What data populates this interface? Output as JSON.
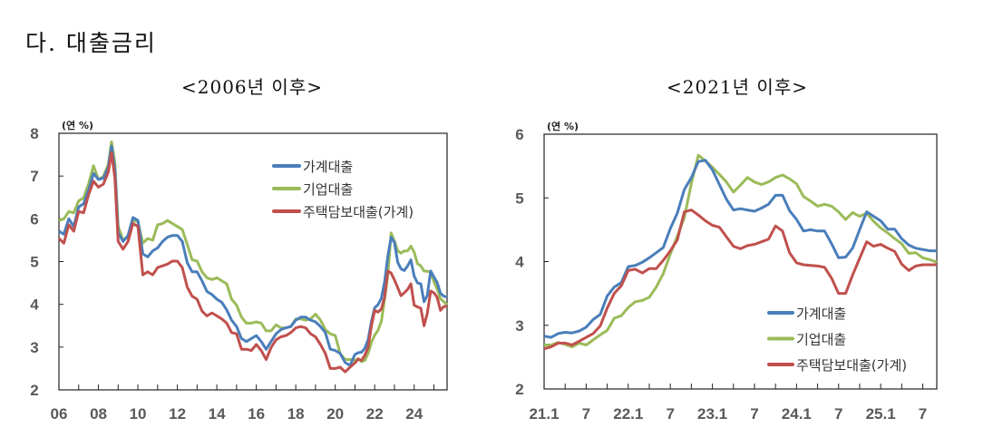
{
  "page_title": "다. 대출금리",
  "chart_data": [
    {
      "type": "line",
      "subtitle": "<2006년 이후>",
      "unit": "(연 %)",
      "ylim": [
        2,
        8
      ],
      "yticks": [
        2,
        3,
        4,
        5,
        6,
        7,
        8
      ],
      "xlim": [
        "2006-01",
        "2025-09"
      ],
      "xtick_labels": [
        "06",
        "08",
        "10",
        "12",
        "14",
        "16",
        "18",
        "20",
        "22",
        "24"
      ],
      "legend_position": "top-right",
      "x": [
        "2006-01",
        "2006-04",
        "2006-07",
        "2006-10",
        "2007-01",
        "2007-04",
        "2007-07",
        "2007-10",
        "2008-01",
        "2008-04",
        "2008-07",
        "2008-09",
        "2008-11",
        "2009-01",
        "2009-04",
        "2009-07",
        "2009-10",
        "2010-01",
        "2010-04",
        "2010-07",
        "2010-10",
        "2011-01",
        "2011-04",
        "2011-07",
        "2011-10",
        "2012-01",
        "2012-04",
        "2012-07",
        "2012-10",
        "2013-01",
        "2013-04",
        "2013-07",
        "2013-10",
        "2014-01",
        "2014-04",
        "2014-07",
        "2014-10",
        "2015-01",
        "2015-04",
        "2015-07",
        "2015-10",
        "2016-01",
        "2016-04",
        "2016-07",
        "2016-10",
        "2017-01",
        "2017-04",
        "2017-07",
        "2017-10",
        "2018-01",
        "2018-04",
        "2018-07",
        "2018-10",
        "2019-01",
        "2019-04",
        "2019-07",
        "2019-10",
        "2020-01",
        "2020-04",
        "2020-07",
        "2020-10",
        "2021-01",
        "2021-03",
        "2021-05",
        "2021-07",
        "2021-09",
        "2021-11",
        "2022-01",
        "2022-03",
        "2022-05",
        "2022-07",
        "2022-09",
        "2022-11",
        "2023-01",
        "2023-03",
        "2023-05",
        "2023-07",
        "2023-09",
        "2023-11",
        "2024-01",
        "2024-03",
        "2024-05",
        "2024-07",
        "2024-09",
        "2024-11",
        "2025-01",
        "2025-03",
        "2025-05",
        "2025-07",
        "2025-09"
      ],
      "series": [
        {
          "name": "가계대출",
          "color": "#4a7ebb",
          "values": [
            5.71,
            5.64,
            6.0,
            5.82,
            6.28,
            6.35,
            6.67,
            7.06,
            6.92,
            6.95,
            7.2,
            7.7,
            7.16,
            5.68,
            5.47,
            5.61,
            6.03,
            5.96,
            5.18,
            5.11,
            5.25,
            5.32,
            5.47,
            5.57,
            5.61,
            5.61,
            5.47,
            4.97,
            4.76,
            4.76,
            4.55,
            4.3,
            4.23,
            4.12,
            4.05,
            3.87,
            3.63,
            3.48,
            3.2,
            3.13,
            3.2,
            3.27,
            3.13,
            2.95,
            3.13,
            3.31,
            3.41,
            3.45,
            3.48,
            3.63,
            3.7,
            3.7,
            3.63,
            3.59,
            3.48,
            3.34,
            2.95,
            2.92,
            2.85,
            2.64,
            2.57,
            2.83,
            2.87,
            2.88,
            2.97,
            3.17,
            3.6,
            3.92,
            3.99,
            4.14,
            4.52,
            5.13,
            5.57,
            5.44,
            4.98,
            4.83,
            4.79,
            4.9,
            5.04,
            4.66,
            4.5,
            4.48,
            4.06,
            4.21,
            4.78,
            4.64,
            4.51,
            4.26,
            4.19,
            4.17
          ]
        },
        {
          "name": "기업대출",
          "color": "#9bbb59",
          "values": [
            5.96,
            6.0,
            6.17,
            6.14,
            6.42,
            6.49,
            6.81,
            7.24,
            6.92,
            6.99,
            7.27,
            7.8,
            7.31,
            5.82,
            5.5,
            5.57,
            5.96,
            5.93,
            5.43,
            5.54,
            5.5,
            5.86,
            5.89,
            5.96,
            5.89,
            5.82,
            5.75,
            5.4,
            5.04,
            5.01,
            4.76,
            4.62,
            4.58,
            4.62,
            4.55,
            4.48,
            4.12,
            3.98,
            3.7,
            3.56,
            3.56,
            3.59,
            3.56,
            3.38,
            3.38,
            3.52,
            3.45,
            3.45,
            3.48,
            3.66,
            3.66,
            3.63,
            3.66,
            3.77,
            3.63,
            3.41,
            3.31,
            3.27,
            2.85,
            2.71,
            2.71,
            2.69,
            2.73,
            2.66,
            2.69,
            2.85,
            3.11,
            3.28,
            3.39,
            3.6,
            4.12,
            4.69,
            5.67,
            5.48,
            5.25,
            5.2,
            5.25,
            5.25,
            5.36,
            5.22,
            4.95,
            4.9,
            4.78,
            4.77,
            4.76,
            4.53,
            4.36,
            4.13,
            4.06,
            3.99
          ]
        },
        {
          "name": "주택담보대출(가계)",
          "color": "#c0504d",
          "values": [
            5.54,
            5.43,
            5.86,
            5.71,
            6.17,
            6.14,
            6.56,
            6.88,
            6.74,
            6.81,
            7.09,
            7.55,
            6.95,
            5.47,
            5.29,
            5.47,
            5.89,
            5.82,
            4.69,
            4.76,
            4.69,
            4.86,
            4.9,
            4.94,
            5.01,
            5.01,
            4.86,
            4.4,
            4.19,
            4.12,
            3.84,
            3.73,
            3.8,
            3.73,
            3.66,
            3.56,
            3.34,
            3.31,
            2.95,
            2.95,
            2.92,
            3.06,
            2.92,
            2.71,
            2.99,
            3.17,
            3.24,
            3.27,
            3.34,
            3.45,
            3.48,
            3.45,
            3.31,
            3.24,
            3.06,
            2.85,
            2.5,
            2.5,
            2.53,
            2.42,
            2.53,
            2.63,
            2.72,
            2.69,
            2.81,
            2.99,
            3.5,
            3.86,
            3.82,
            3.89,
            4.17,
            4.78,
            4.73,
            4.57,
            4.39,
            4.2,
            4.27,
            4.35,
            4.48,
            3.98,
            3.94,
            3.91,
            3.5,
            3.79,
            4.31,
            4.27,
            4.16,
            3.86,
            3.95,
            3.95
          ]
        }
      ]
    },
    {
      "type": "line",
      "subtitle": "<2021년 이후>",
      "unit": "(연 %)",
      "ylim": [
        2,
        6
      ],
      "yticks": [
        2,
        3,
        4,
        5,
        6
      ],
      "xlim": [
        "2021-01",
        "2025-09"
      ],
      "xtick_labels": [
        "21.1",
        "7",
        "22.1",
        "7",
        "23.1",
        "7",
        "24.1",
        "7",
        "25.1",
        "7"
      ],
      "legend_position": "bottom-right",
      "x": [
        "2021-01",
        "2021-02",
        "2021-03",
        "2021-04",
        "2021-05",
        "2021-06",
        "2021-07",
        "2021-08",
        "2021-09",
        "2021-10",
        "2021-11",
        "2021-12",
        "2022-01",
        "2022-02",
        "2022-03",
        "2022-04",
        "2022-05",
        "2022-06",
        "2022-07",
        "2022-08",
        "2022-09",
        "2022-10",
        "2022-11",
        "2022-12",
        "2023-01",
        "2023-02",
        "2023-03",
        "2023-04",
        "2023-05",
        "2023-06",
        "2023-07",
        "2023-08",
        "2023-09",
        "2023-10",
        "2023-11",
        "2023-12",
        "2024-01",
        "2024-02",
        "2024-03",
        "2024-04",
        "2024-05",
        "2024-06",
        "2024-07",
        "2024-08",
        "2024-09",
        "2024-10",
        "2024-11",
        "2024-12",
        "2025-01",
        "2025-02",
        "2025-03",
        "2025-04",
        "2025-05",
        "2025-06",
        "2025-07",
        "2025-08",
        "2025-09"
      ],
      "series": [
        {
          "name": "가계대출",
          "color": "#4a7ebb",
          "values": [
            2.83,
            2.81,
            2.87,
            2.89,
            2.88,
            2.91,
            2.97,
            3.09,
            3.17,
            3.46,
            3.6,
            3.67,
            3.92,
            3.94,
            3.99,
            4.06,
            4.14,
            4.22,
            4.52,
            4.76,
            5.13,
            5.32,
            5.57,
            5.59,
            5.44,
            5.21,
            4.98,
            4.81,
            4.83,
            4.81,
            4.79,
            4.84,
            4.9,
            5.04,
            5.04,
            4.8,
            4.66,
            4.48,
            4.5,
            4.48,
            4.48,
            4.28,
            4.06,
            4.07,
            4.21,
            4.5,
            4.78,
            4.71,
            4.64,
            4.51,
            4.51,
            4.36,
            4.26,
            4.21,
            4.19,
            4.17,
            4.17
          ]
        },
        {
          "name": "기업대출",
          "color": "#9bbb59",
          "values": [
            2.69,
            2.69,
            2.73,
            2.7,
            2.66,
            2.72,
            2.69,
            2.77,
            2.85,
            2.92,
            3.11,
            3.15,
            3.28,
            3.37,
            3.39,
            3.44,
            3.6,
            3.81,
            4.12,
            4.4,
            4.69,
            5.23,
            5.67,
            5.58,
            5.48,
            5.37,
            5.25,
            5.09,
            5.2,
            5.32,
            5.25,
            5.21,
            5.25,
            5.32,
            5.36,
            5.3,
            5.22,
            5.02,
            4.95,
            4.87,
            4.9,
            4.87,
            4.78,
            4.66,
            4.77,
            4.71,
            4.76,
            4.63,
            4.53,
            4.45,
            4.36,
            4.28,
            4.13,
            4.14,
            4.06,
            4.03,
            3.99
          ]
        },
        {
          "name": "주택담보대출(가계)",
          "color": "#c0504d",
          "values": [
            2.63,
            2.66,
            2.72,
            2.72,
            2.69,
            2.75,
            2.81,
            2.87,
            2.99,
            3.27,
            3.5,
            3.62,
            3.86,
            3.88,
            3.82,
            3.89,
            3.89,
            4.02,
            4.17,
            4.34,
            4.78,
            4.81,
            4.73,
            4.64,
            4.57,
            4.54,
            4.39,
            4.24,
            4.2,
            4.25,
            4.27,
            4.31,
            4.35,
            4.56,
            4.48,
            4.14,
            3.98,
            3.95,
            3.94,
            3.93,
            3.91,
            3.74,
            3.5,
            3.5,
            3.79,
            4.05,
            4.31,
            4.24,
            4.27,
            4.21,
            4.16,
            3.96,
            3.86,
            3.93,
            3.95,
            3.95,
            3.95
          ]
        }
      ]
    }
  ]
}
